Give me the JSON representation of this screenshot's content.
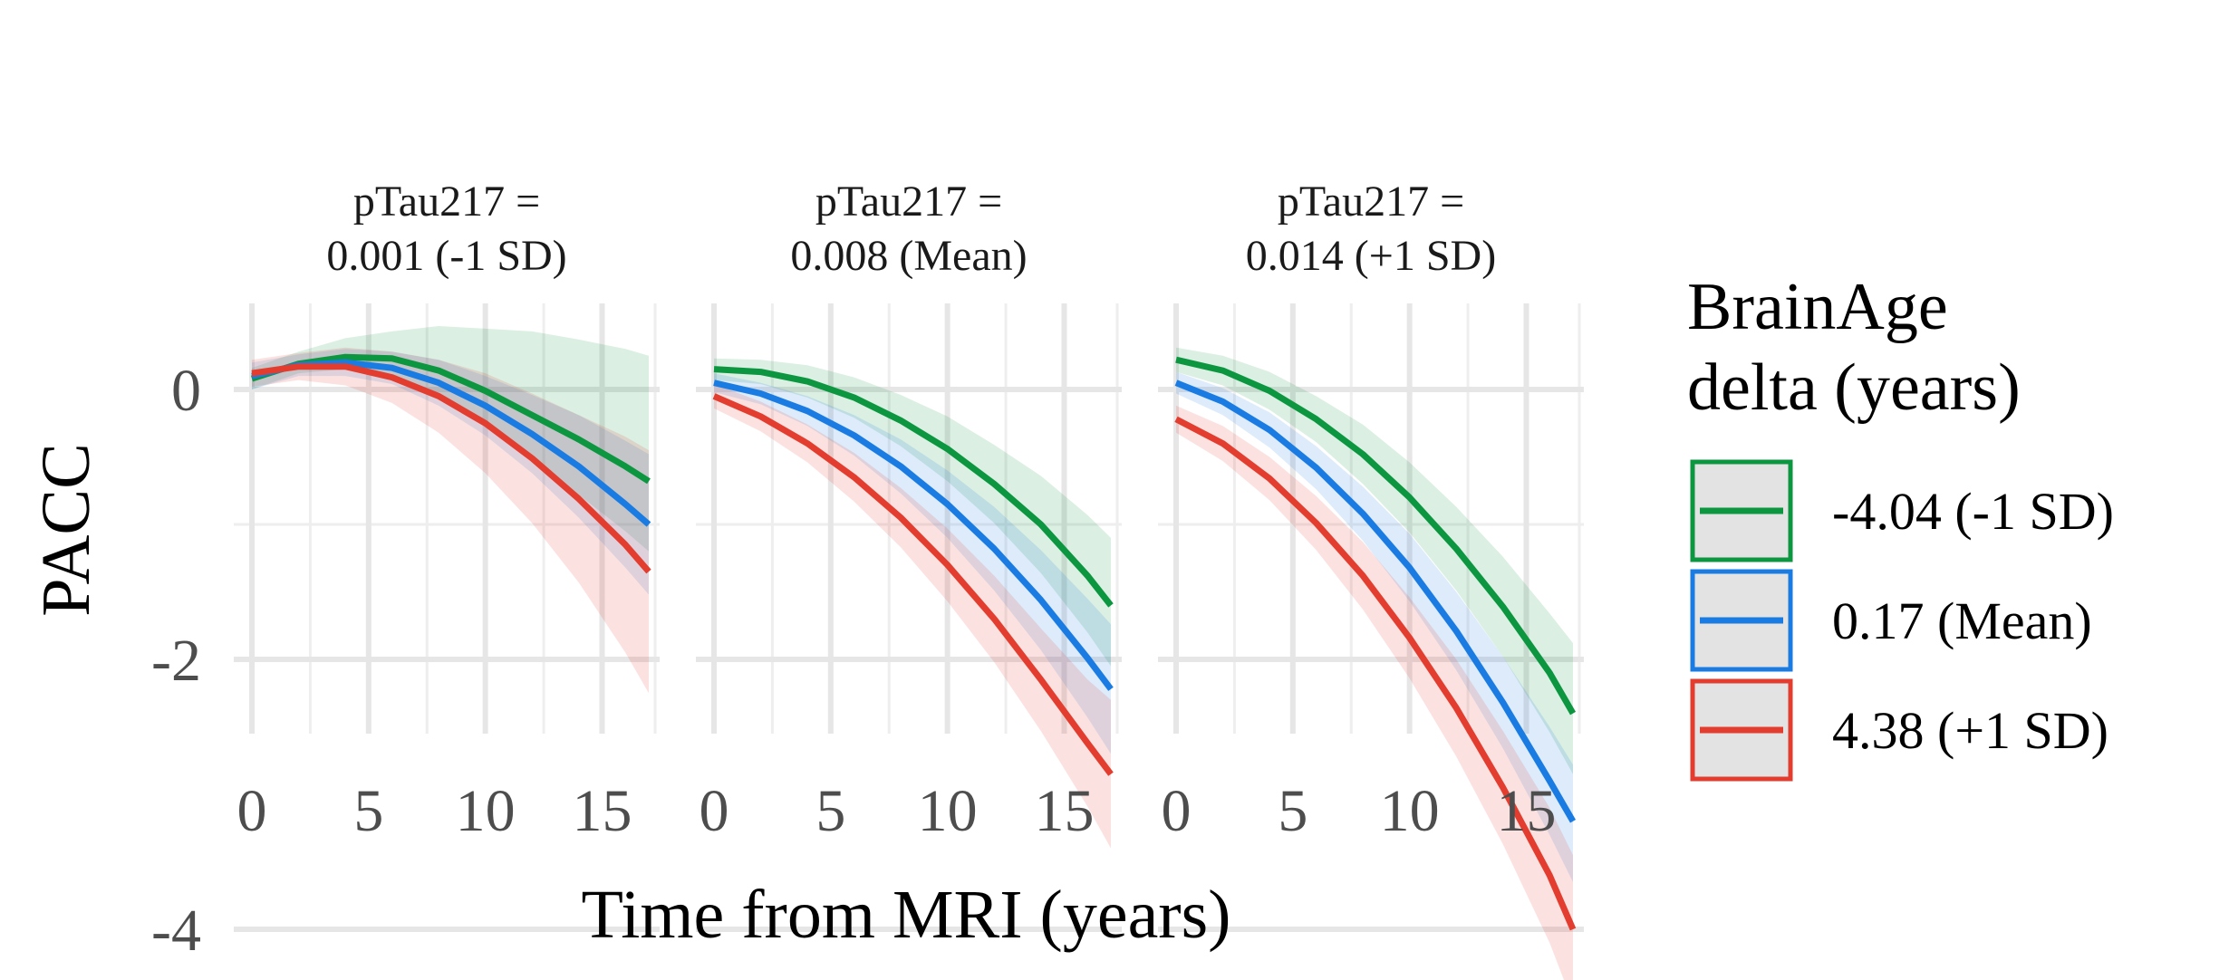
{
  "chart_data": {
    "type": "line",
    "xlabel": "Time from MRI (years)",
    "ylabel": "PACC",
    "xlim": [
      0,
      17
    ],
    "ylim": [
      -5,
      1
    ],
    "x_ticks": [
      0,
      5,
      10,
      15
    ],
    "y_ticks": [
      0,
      -2,
      -4
    ],
    "x_tick_labels": [
      "0",
      "5",
      "10",
      "15"
    ],
    "y_tick_labels": [
      "0",
      "-2",
      "-4"
    ],
    "grid": true,
    "confidence_bands": true,
    "legend": {
      "title_lines": [
        "BrainAge",
        "delta (years)"
      ],
      "placement": "right"
    },
    "x": [
      0,
      2,
      4,
      6,
      8,
      10,
      12,
      14,
      16,
      17
    ],
    "panels": [
      {
        "title_lines": [
          "pTau217 =",
          "0.001 (-1 SD)"
        ],
        "series": [
          {
            "name": "-4.04 (-1 SD)",
            "color": "#0c9640",
            "values": [
              0.08,
              0.19,
              0.24,
              0.23,
              0.14,
              -0.01,
              -0.19,
              -0.37,
              -0.57,
              -0.68
            ],
            "lower": [
              0.0,
              0.12,
              0.15,
              0.1,
              -0.05,
              -0.25,
              -0.5,
              -0.78,
              -1.05,
              -1.2
            ],
            "upper": [
              0.16,
              0.28,
              0.38,
              0.43,
              0.47,
              0.45,
              0.43,
              0.37,
              0.3,
              0.25
            ]
          },
          {
            "name": "0.17 (Mean)",
            "color": "#1a7ce2",
            "values": [
              0.1,
              0.18,
              0.2,
              0.16,
              0.05,
              -0.12,
              -0.33,
              -0.57,
              -0.85,
              -1.0
            ],
            "lower": [
              0.0,
              0.1,
              0.1,
              0.04,
              -0.12,
              -0.34,
              -0.62,
              -0.95,
              -1.32,
              -1.52
            ],
            "upper": [
              0.2,
              0.26,
              0.3,
              0.28,
              0.22,
              0.1,
              -0.04,
              -0.19,
              -0.38,
              -0.48
            ]
          },
          {
            "name": "4.38 (+1 SD)",
            "color": "#e23d2e",
            "values": [
              0.12,
              0.17,
              0.17,
              0.09,
              -0.05,
              -0.25,
              -0.51,
              -0.81,
              -1.15,
              -1.35
            ],
            "lower": [
              0.02,
              0.07,
              0.03,
              -0.1,
              -0.32,
              -0.62,
              -0.99,
              -1.43,
              -1.95,
              -2.25
            ],
            "upper": [
              0.22,
              0.27,
              0.31,
              0.28,
              0.22,
              0.12,
              -0.03,
              -0.19,
              -0.35,
              -0.45
            ]
          }
        ]
      },
      {
        "title_lines": [
          "pTau217 =",
          "0.008 (Mean)"
        ],
        "series": [
          {
            "name": "-4.04 (-1 SD)",
            "color": "#0c9640",
            "values": [
              0.15,
              0.13,
              0.06,
              -0.06,
              -0.23,
              -0.44,
              -0.7,
              -1.0,
              -1.38,
              -1.6
            ],
            "lower": [
              0.07,
              0.04,
              -0.06,
              -0.21,
              -0.42,
              -0.68,
              -0.99,
              -1.36,
              -1.8,
              -2.05
            ],
            "upper": [
              0.23,
              0.22,
              0.18,
              0.09,
              -0.04,
              -0.2,
              -0.41,
              -0.64,
              -0.93,
              -1.1
            ]
          },
          {
            "name": "0.17 (Mean)",
            "color": "#1a7ce2",
            "values": [
              0.05,
              -0.03,
              -0.16,
              -0.34,
              -0.57,
              -0.85,
              -1.18,
              -1.56,
              -1.99,
              -2.22
            ],
            "lower": [
              -0.02,
              -0.11,
              -0.27,
              -0.49,
              -0.77,
              -1.1,
              -1.49,
              -1.93,
              -2.43,
              -2.7
            ],
            "upper": [
              0.12,
              0.05,
              -0.05,
              -0.19,
              -0.37,
              -0.6,
              -0.87,
              -1.19,
              -1.55,
              -1.74
            ]
          },
          {
            "name": "4.38 (+1 SD)",
            "color": "#e23d2e",
            "values": [
              -0.05,
              -0.2,
              -0.4,
              -0.65,
              -0.95,
              -1.3,
              -1.7,
              -2.15,
              -2.62,
              -2.85
            ],
            "lower": [
              -0.14,
              -0.31,
              -0.54,
              -0.83,
              -1.17,
              -1.57,
              -2.02,
              -2.53,
              -3.09,
              -3.4
            ],
            "upper": [
              0.04,
              -0.09,
              -0.26,
              -0.47,
              -0.73,
              -1.03,
              -1.38,
              -1.77,
              -2.15,
              -2.3
            ]
          }
        ]
      },
      {
        "title_lines": [
          "pTau217 =",
          "0.014 (+1 SD)"
        ],
        "series": [
          {
            "name": "-4.04 (-1 SD)",
            "color": "#0c9640",
            "values": [
              0.22,
              0.14,
              -0.01,
              -0.22,
              -0.48,
              -0.8,
              -1.18,
              -1.61,
              -2.1,
              -2.4
            ],
            "lower": [
              0.13,
              0.03,
              -0.15,
              -0.39,
              -0.7,
              -1.06,
              -1.49,
              -1.98,
              -2.54,
              -2.85
            ],
            "upper": [
              0.31,
              0.25,
              0.13,
              -0.05,
              -0.26,
              -0.54,
              -0.87,
              -1.24,
              -1.66,
              -1.88
            ]
          },
          {
            "name": "0.17 (Mean)",
            "color": "#1a7ce2",
            "values": [
              0.05,
              -0.09,
              -0.3,
              -0.58,
              -0.92,
              -1.32,
              -1.79,
              -2.32,
              -2.9,
              -3.2
            ],
            "lower": [
              -0.03,
              -0.19,
              -0.43,
              -0.74,
              -1.12,
              -1.57,
              -2.08,
              -2.66,
              -3.3,
              -3.65
            ],
            "upper": [
              0.13,
              0.01,
              -0.17,
              -0.42,
              -0.72,
              -1.07,
              -1.5,
              -1.98,
              -2.5,
              -2.78
            ]
          },
          {
            "name": "4.38 (+1 SD)",
            "color": "#e23d2e",
            "values": [
              -0.22,
              -0.4,
              -0.66,
              -0.99,
              -1.38,
              -1.84,
              -2.36,
              -2.95,
              -3.6,
              -4.0
            ],
            "lower": [
              -0.32,
              -0.53,
              -0.82,
              -1.19,
              -1.63,
              -2.14,
              -2.72,
              -3.37,
              -4.1,
              -4.55
            ],
            "upper": [
              -0.12,
              -0.27,
              -0.5,
              -0.79,
              -1.13,
              -1.54,
              -2.0,
              -2.53,
              -3.1,
              -3.45
            ]
          }
        ]
      }
    ]
  }
}
